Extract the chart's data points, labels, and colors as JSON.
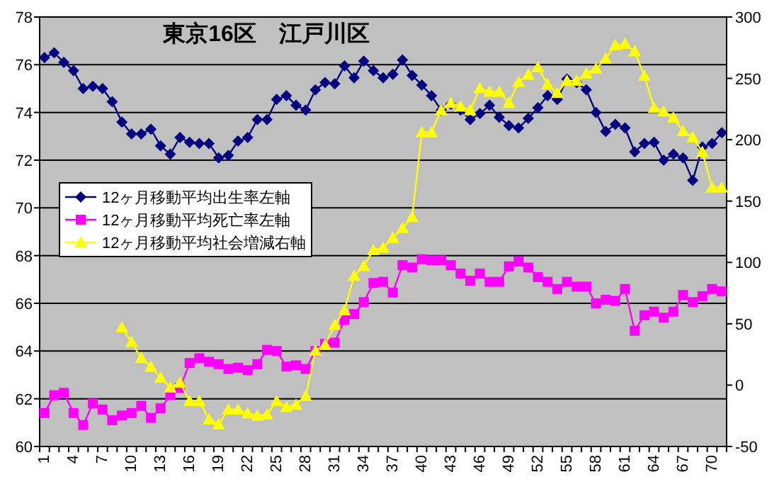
{
  "chart_data": {
    "type": "line",
    "title": "東京16区　江戸川区",
    "categories": [
      "1",
      null,
      null,
      "4",
      null,
      null,
      "7",
      null,
      null,
      "10",
      null,
      null,
      "13",
      null,
      null,
      "16",
      null,
      null,
      "19",
      null,
      null,
      "22",
      null,
      null,
      "25",
      null,
      null,
      "28",
      null,
      null,
      "31",
      null,
      null,
      "34",
      null,
      null,
      "37",
      null,
      null,
      "40",
      null,
      null,
      "43",
      null,
      null,
      "46",
      null,
      null,
      "49",
      null,
      null,
      "52",
      null,
      null,
      "55",
      null,
      null,
      "58",
      null,
      null,
      "61",
      null,
      null,
      "64",
      null,
      null,
      "67",
      null,
      null,
      "70",
      null
    ],
    "series": [
      {
        "name": "12ヶ月移動平均出生率左軸",
        "color": "#000080",
        "marker": "diamond",
        "values": [
          76.3,
          76.5,
          76.1,
          75.75,
          75.0,
          75.1,
          75.0,
          74.45,
          73.6,
          73.1,
          73.1,
          73.3,
          72.6,
          72.25,
          72.95,
          72.75,
          72.7,
          72.7,
          72.1,
          72.2,
          72.8,
          72.95,
          73.7,
          73.7,
          74.55,
          74.7,
          74.3,
          74.1,
          74.95,
          75.25,
          75.2,
          75.95,
          75.45,
          76.15,
          75.75,
          75.45,
          75.6,
          76.2,
          75.55,
          75.15,
          74.7,
          74.1,
          74.35,
          74.1,
          73.7,
          73.95,
          74.3,
          73.8,
          73.45,
          73.35,
          73.75,
          74.2,
          74.7,
          74.55,
          75.4,
          75.25,
          74.95,
          74.0,
          73.2,
          73.5,
          73.35,
          72.35,
          72.7,
          72.75,
          72.0,
          72.25,
          72.1,
          71.15,
          72.55,
          72.7,
          73.15
        ]
      },
      {
        "name": "12ヶ月移動平均死亡率左軸",
        "color": "#ff00ff",
        "marker": "square",
        "values": [
          61.4,
          62.15,
          62.25,
          61.4,
          60.9,
          61.8,
          61.55,
          61.1,
          61.3,
          61.4,
          61.7,
          61.2,
          61.6,
          62.15,
          62.45,
          63.5,
          63.7,
          63.55,
          63.45,
          63.25,
          63.3,
          63.2,
          63.45,
          64.05,
          64.0,
          63.35,
          63.4,
          63.25,
          64.0,
          64.3,
          64.35,
          65.3,
          65.55,
          66.05,
          66.85,
          66.9,
          66.45,
          67.6,
          67.5,
          67.85,
          67.8,
          67.8,
          67.6,
          67.25,
          66.95,
          67.25,
          66.9,
          66.9,
          67.55,
          67.75,
          67.5,
          67.1,
          66.9,
          66.6,
          66.9,
          66.7,
          66.7,
          66.0,
          66.15,
          66.1,
          66.6,
          64.85,
          65.5,
          65.65,
          65.4,
          65.65,
          66.35,
          66.05,
          66.3,
          66.6,
          66.5
        ]
      },
      {
        "name": "12ヶ月移動平均社会増減右軸",
        "color": "#ffff00",
        "marker": "triangle",
        "axis": "y2",
        "values": [
          null,
          null,
          null,
          null,
          null,
          null,
          null,
          null,
          47,
          35,
          22,
          15,
          6,
          -2,
          2,
          -13,
          -13,
          -28,
          -32,
          -20,
          -20,
          -23,
          -25,
          -24,
          -13,
          -18,
          -16,
          -9,
          28,
          33,
          49,
          61,
          89,
          97,
          110,
          112,
          120,
          128,
          137,
          206,
          206,
          224,
          230,
          227,
          224,
          242,
          239,
          239,
          230,
          247,
          253,
          259,
          245,
          238,
          248,
          248,
          254,
          258,
          266,
          277,
          278,
          272,
          252,
          226,
          223,
          218,
          207,
          202,
          190,
          161,
          161
        ]
      }
    ],
    "ylim": [
      60,
      78
    ],
    "yticks": [
      60,
      62,
      64,
      66,
      68,
      70,
      72,
      74,
      76,
      78
    ],
    "y2lim": [
      -50,
      300
    ],
    "y2ticks": [
      -50,
      0,
      50,
      100,
      150,
      200,
      250,
      300
    ],
    "grid": "y",
    "legend": "left"
  }
}
